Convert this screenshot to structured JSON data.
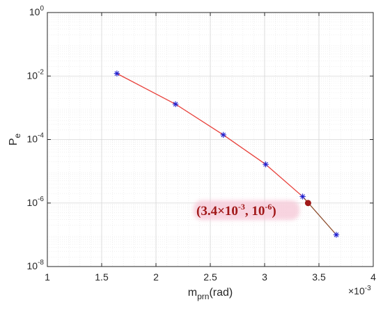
{
  "chart_data": {
    "type": "line",
    "title": "",
    "xlabel": "m_prn(rad)",
    "xlabel_base": "m",
    "xlabel_sub": "prn",
    "xlabel_rest": "(rad)",
    "ylabel": "P_e",
    "ylabel_base": "P",
    "ylabel_sub": "e",
    "x_multiplier": {
      "base": "×10",
      "exp": "-3"
    },
    "x_scale": "linear",
    "y_scale": "log",
    "xlim": [
      1,
      4
    ],
    "ylim": [
      1e-08,
      1
    ],
    "grid": true,
    "x_ticks": [
      "1",
      "1.5",
      "2",
      "2.5",
      "3",
      "3.5",
      "4"
    ],
    "x_tick_values": [
      1,
      1.5,
      2,
      2.5,
      3,
      3.5,
      4
    ],
    "y_ticks": [
      {
        "base": "10",
        "exp": "0",
        "value": 1
      },
      {
        "base": "10",
        "exp": "-2",
        "value": 0.01
      },
      {
        "base": "10",
        "exp": "-4",
        "value": 0.0001
      },
      {
        "base": "10",
        "exp": "-6",
        "value": 1e-06
      },
      {
        "base": "10",
        "exp": "-8",
        "value": 1e-08
      }
    ],
    "series": [
      {
        "marker": "asterisk",
        "color": "#1f1fd0",
        "x": [
          1.64,
          2.18,
          2.62,
          3.01,
          3.35,
          3.66
        ],
        "y": [
          0.012,
          0.0013,
          0.00014,
          1.65e-05,
          1.6e-06,
          1e-07
        ],
        "segment_colors": [
          "#e8403a",
          "#e8403a",
          "#e8403a",
          "#e8403a",
          "#8b4a2a"
        ]
      }
    ],
    "highlight": {
      "x": 3.4,
      "y": 1e-06,
      "color": "#a01818",
      "label_parts": [
        {
          "text": "(3.4×10",
          "kind": "normal"
        },
        {
          "text": "-3",
          "kind": "sup"
        },
        {
          "text": ", 10",
          "kind": "normal"
        },
        {
          "text": "-6",
          "kind": "sup"
        },
        {
          "text": ")",
          "kind": "normal"
        }
      ]
    }
  }
}
